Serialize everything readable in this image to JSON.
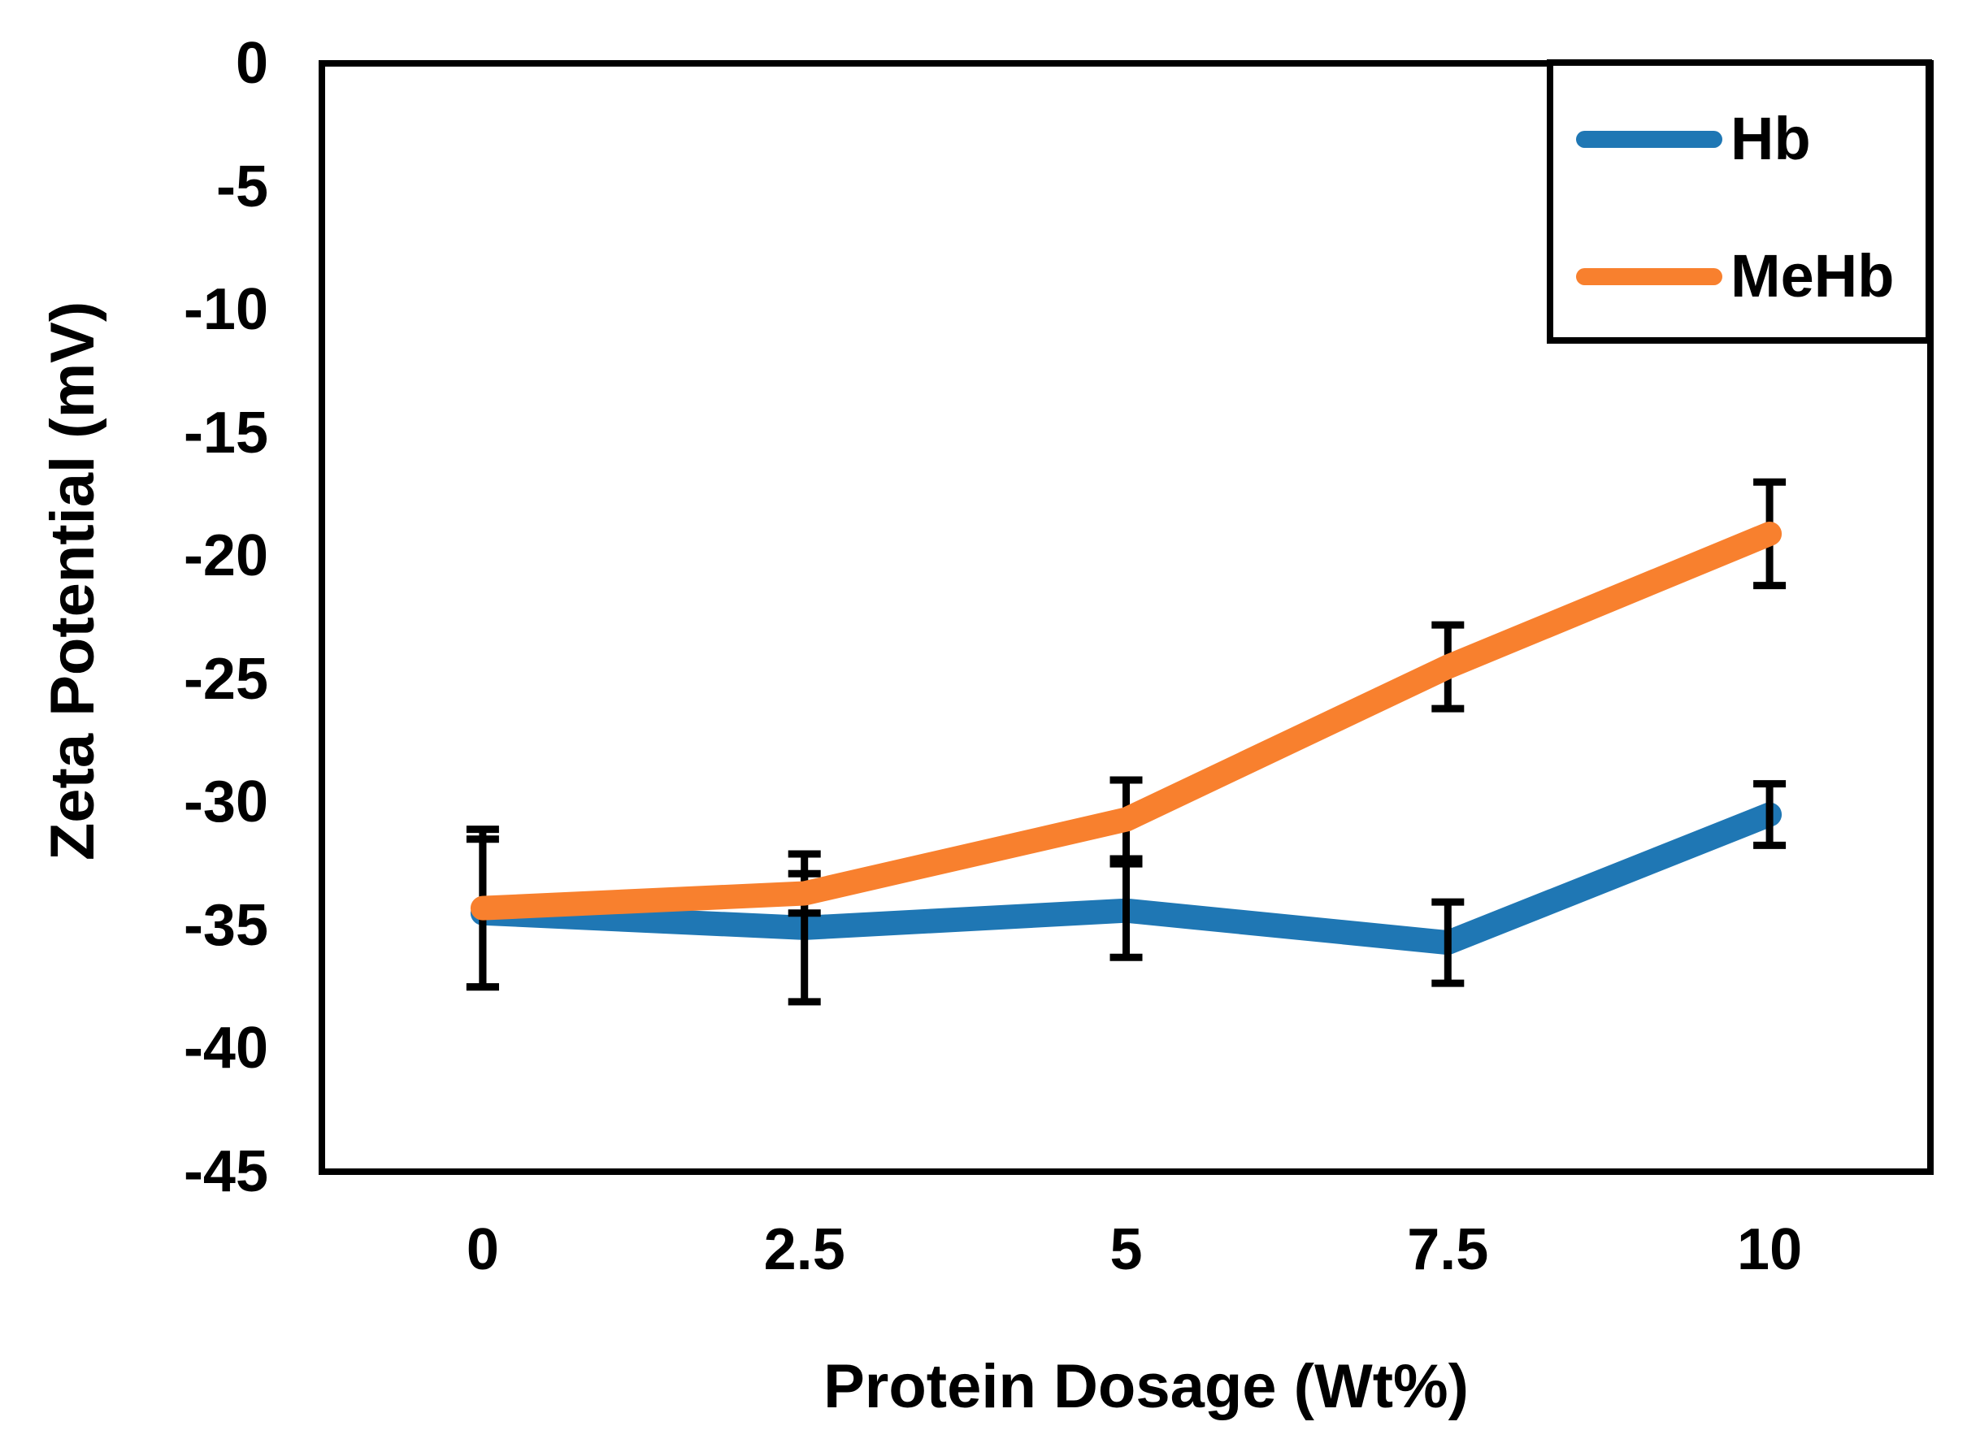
{
  "figure": {
    "kind": "static-line-chart-with-error-bars",
    "background_color": "#ffffff",
    "axis_color": "#000000",
    "error_bar_color": "#000000"
  },
  "chart_data": {
    "type": "line",
    "title": "",
    "xlabel": "Protein Dosage (Wt%)",
    "ylabel": "Zeta Potential (mV)",
    "categories": [
      "0",
      "2.5",
      "5",
      "7.5",
      "10"
    ],
    "category_values": [
      0,
      2.5,
      5,
      7.5,
      10
    ],
    "y_tick_labels": [
      "0",
      "-5",
      "-10",
      "-15",
      "-20",
      "-25",
      "-30",
      "-35",
      "-40",
      "-45"
    ],
    "y_tick_values": [
      0,
      -5,
      -10,
      -15,
      -20,
      -25,
      -30,
      -35,
      -40,
      -45
    ],
    "ylim": [
      -45,
      0
    ],
    "grid": false,
    "legend": {
      "position": "top-right",
      "border": true
    },
    "series": [
      {
        "name": "Hb",
        "color": "#1F77B4",
        "values": [
          -34.5,
          -35.1,
          -34.4,
          -35.7,
          -30.5
        ],
        "errors": [
          3.0,
          3.0,
          1.9,
          1.65,
          1.25
        ]
      },
      {
        "name": "MeHb",
        "color": "#F8802E",
        "values": [
          -34.3,
          -33.7,
          -30.7,
          -24.5,
          -19.1
        ],
        "errors": [
          3.2,
          0.8,
          1.6,
          1.7,
          2.1
        ]
      }
    ]
  }
}
